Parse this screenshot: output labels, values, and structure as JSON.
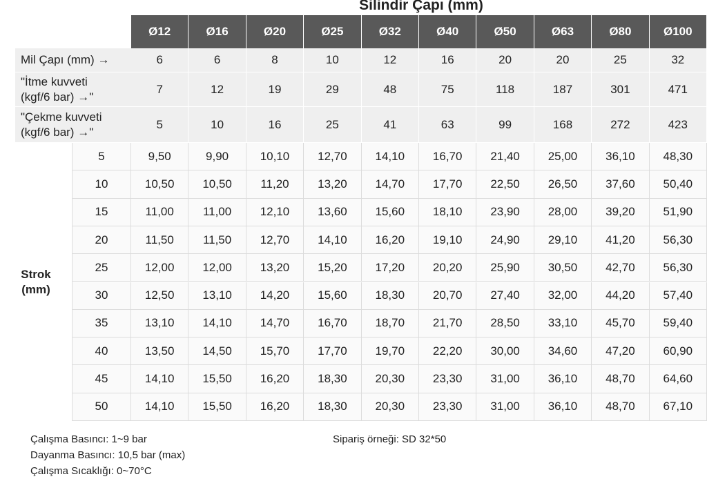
{
  "title": "Silindir Çapı (mm)",
  "table": {
    "columns": [
      "Ø12",
      "Ø16",
      "Ø20",
      "Ø25",
      "Ø32",
      "Ø40",
      "Ø50",
      "Ø63",
      "Ø80",
      "Ø100"
    ],
    "spec_rows": [
      {
        "label": [
          "Mil Çapı (mm) →"
        ],
        "values": [
          "6",
          "6",
          "8",
          "10",
          "12",
          "16",
          "20",
          "20",
          "25",
          "32"
        ]
      },
      {
        "label": [
          "\"İtme kuvveti",
          "(kgf/6 bar) →\""
        ],
        "values": [
          "7",
          "12",
          "19",
          "29",
          "48",
          "75",
          "118",
          "187",
          "301",
          "471"
        ]
      },
      {
        "label": [
          "\"Çekme kuvveti",
          "(kgf/6 bar) →\""
        ],
        "values": [
          "5",
          "10",
          "16",
          "25",
          "41",
          "63",
          "99",
          "168",
          "272",
          "423"
        ]
      }
    ],
    "stroke_label": [
      "Strok",
      "(mm)"
    ],
    "stroke_rows": [
      {
        "stroke": "5",
        "values": [
          "9,50",
          "9,90",
          "10,10",
          "12,70",
          "14,10",
          "16,70",
          "21,40",
          "25,00",
          "36,10",
          "48,30"
        ]
      },
      {
        "stroke": "10",
        "values": [
          "10,50",
          "10,50",
          "11,20",
          "13,20",
          "14,70",
          "17,70",
          "22,50",
          "26,50",
          "37,60",
          "50,40"
        ]
      },
      {
        "stroke": "15",
        "values": [
          "11,00",
          "11,00",
          "12,10",
          "13,60",
          "15,60",
          "18,10",
          "23,90",
          "28,00",
          "39,20",
          "51,90"
        ]
      },
      {
        "stroke": "20",
        "values": [
          "11,50",
          "11,50",
          "12,70",
          "14,10",
          "16,20",
          "19,10",
          "24,90",
          "29,10",
          "41,20",
          "56,30"
        ]
      },
      {
        "stroke": "25",
        "values": [
          "12,00",
          "12,00",
          "13,20",
          "15,20",
          "17,20",
          "20,20",
          "25,90",
          "30,50",
          "42,70",
          "56,30"
        ]
      },
      {
        "stroke": "30",
        "values": [
          "12,50",
          "13,10",
          "14,20",
          "15,60",
          "18,30",
          "20,70",
          "27,40",
          "32,00",
          "44,20",
          "57,40"
        ]
      },
      {
        "stroke": "35",
        "values": [
          "13,10",
          "14,10",
          "14,70",
          "16,70",
          "18,70",
          "21,70",
          "28,50",
          "33,10",
          "45,70",
          "59,40"
        ]
      },
      {
        "stroke": "40",
        "values": [
          "13,50",
          "14,50",
          "15,70",
          "17,70",
          "19,70",
          "22,20",
          "30,00",
          "34,60",
          "47,20",
          "60,90"
        ]
      },
      {
        "stroke": "45",
        "values": [
          "14,10",
          "15,50",
          "16,20",
          "18,30",
          "20,30",
          "23,30",
          "31,00",
          "36,10",
          "48,70",
          "64,60"
        ]
      },
      {
        "stroke": "50",
        "values": [
          "14,10",
          "15,50",
          "16,20",
          "18,30",
          "20,30",
          "23,30",
          "31,00",
          "36,10",
          "48,70",
          "67,10"
        ]
      }
    ]
  },
  "notes": [
    "Çalışma Basıncı: 1~9 bar",
    "Dayanma Basıncı: 10,5 bar (max)",
    "Çalışma Sıcaklığı: 0~70°C"
  ],
  "example": "Sipariş örneği: SD 32*50"
}
